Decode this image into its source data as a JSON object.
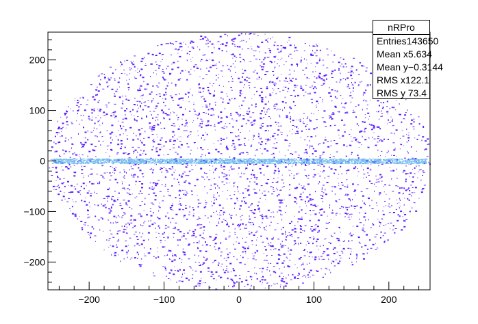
{
  "colors": {
    "fill": "#5c1fff",
    "accent": "#3aa0e8",
    "axis": "#000000",
    "background": "#ffffff"
  },
  "stats": {
    "title": "nRPro",
    "rows": [
      {
        "label": "Entries",
        "value": "143650"
      },
      {
        "label": "Mean x",
        "value": "5.634"
      },
      {
        "label": "Mean y",
        "value": "−0.3144"
      },
      {
        "label": "RMS x",
        "value": "122.1"
      },
      {
        "label": "RMS y",
        "value": "73.4"
      }
    ]
  },
  "chart_data": {
    "type": "heatmap",
    "title": "",
    "xlabel": "",
    "ylabel": "",
    "xlim": [
      -255,
      255
    ],
    "ylim": [
      -255,
      255
    ],
    "x_ticks": [
      -200,
      -100,
      0,
      100,
      200
    ],
    "y_ticks": [
      -200,
      -100,
      0,
      100,
      200
    ],
    "x_tick_labels": [
      "−200",
      "−100",
      "0",
      "100",
      "200"
    ],
    "y_tick_labels": [
      "−200",
      "−100",
      "0",
      "100",
      "200"
    ],
    "grid": false,
    "legend": "none",
    "distribution": {
      "shape": "ellipse",
      "center": [
        0,
        0
      ],
      "semi_axis_x": 255,
      "semi_axis_y": 255,
      "dense_band_y": 0,
      "entries": 143650
    }
  }
}
